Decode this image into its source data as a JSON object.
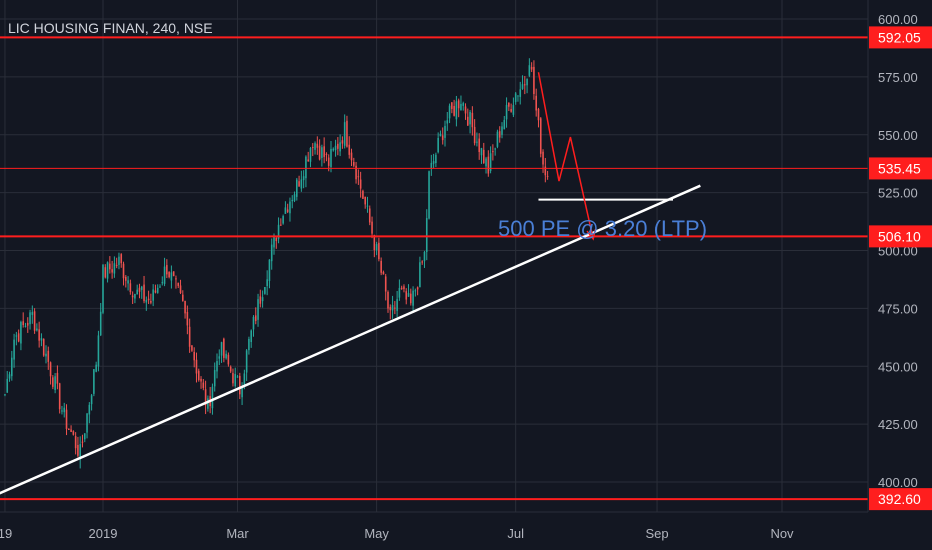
{
  "header": {
    "symbol_title": "LIC HOUSING FINAN, 240, NSE"
  },
  "colors": {
    "background": "#131722",
    "grid": "#2a2e39",
    "candle_up": "#26a69a",
    "candle_down": "#ef5350",
    "level_line": "#ff1e1e",
    "trendline": "#ffffff",
    "annotation": "#4a7fd6"
  },
  "chart_data": {
    "type": "candlestick",
    "ylim": [
      390,
      600
    ],
    "y_ticks": [
      "600.00",
      "575.00",
      "550.00",
      "525.00",
      "500.00",
      "475.00",
      "450.00",
      "425.00",
      "400.00"
    ],
    "x_ticks": [
      "19",
      "2019",
      "Mar",
      "May",
      "Jul",
      "Sep",
      "Nov"
    ],
    "grid": true,
    "price_path": [
      {
        "t": "Nov 19",
        "close": 438
      },
      {
        "t": "Nov 23",
        "close": 462
      },
      {
        "t": "Dec 1",
        "close": 472
      },
      {
        "t": "Dec 8",
        "close": 452
      },
      {
        "t": "Dec 15",
        "close": 428
      },
      {
        "t": "Dec 22",
        "close": 412
      },
      {
        "t": "Dec 29",
        "close": 452
      },
      {
        "t": "Jan 1",
        "close": 490
      },
      {
        "t": "Jan 8",
        "close": 495
      },
      {
        "t": "Jan 15",
        "close": 482
      },
      {
        "t": "Jan 22",
        "close": 478
      },
      {
        "t": "Jan 29",
        "close": 493
      },
      {
        "t": "Feb 5",
        "close": 476
      },
      {
        "t": "Feb 12",
        "close": 445
      },
      {
        "t": "Feb 16",
        "close": 432
      },
      {
        "t": "Feb 21",
        "close": 458
      },
      {
        "t": "Feb 26",
        "close": 448
      },
      {
        "t": "Mar 2",
        "close": 440
      },
      {
        "t": "Mar 6",
        "close": 460
      },
      {
        "t": "Mar 13",
        "close": 488
      },
      {
        "t": "Mar 20",
        "close": 515
      },
      {
        "t": "Mar 27",
        "close": 528
      },
      {
        "t": "Apr 3",
        "close": 548
      },
      {
        "t": "Apr 10",
        "close": 538
      },
      {
        "t": "Apr 17",
        "close": 552
      },
      {
        "t": "Apr 22",
        "close": 535
      },
      {
        "t": "Apr 29",
        "close": 508
      },
      {
        "t": "May 4",
        "close": 486
      },
      {
        "t": "May 7",
        "close": 470
      },
      {
        "t": "May 11",
        "close": 482
      },
      {
        "t": "May 16",
        "close": 476
      },
      {
        "t": "May 22",
        "close": 498
      },
      {
        "t": "May 24",
        "close": 532
      },
      {
        "t": "May 31",
        "close": 555
      },
      {
        "t": "Jun 7",
        "close": 566
      },
      {
        "t": "Jun 14",
        "close": 548
      },
      {
        "t": "Jun 19",
        "close": 535
      },
      {
        "t": "Jun 25",
        "close": 555
      },
      {
        "t": "Jul 1",
        "close": 568
      },
      {
        "t": "Jul 5",
        "close": 573
      },
      {
        "t": "Jul 7",
        "close": 584
      },
      {
        "t": "Jul 10",
        "close": 560
      },
      {
        "t": "Jul 13",
        "close": 538
      },
      {
        "t": "Jul 15",
        "close": 532
      }
    ],
    "horizontal_levels": [
      592.05,
      535.45,
      506.1,
      392.6
    ],
    "level_labels": [
      "592.05",
      "535.45",
      "506.10",
      "392.60"
    ],
    "trendline": [
      {
        "t": "Nov 19",
        "price": 398
      },
      {
        "t": "Sep 20",
        "price": 528
      }
    ],
    "support_line": [
      {
        "t": "Jul 11",
        "price": 522
      },
      {
        "t": "Sep 8",
        "price": 522
      }
    ],
    "forecast_arrow": [
      {
        "t": "Jul 11",
        "price": 577
      },
      {
        "t": "Jul 20",
        "price": 530
      },
      {
        "t": "Jul 25",
        "price": 549
      },
      {
        "t": "Aug 4",
        "price": 505
      }
    ],
    "annotation": "500 PE @ 3.20 (LTP)"
  }
}
